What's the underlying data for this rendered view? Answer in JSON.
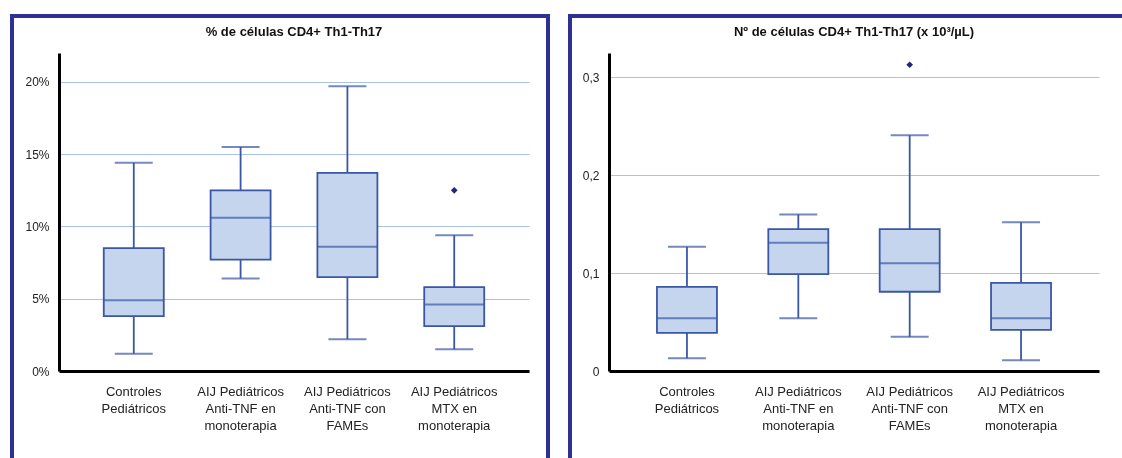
{
  "chart_data": [
    {
      "type": "box",
      "title": "% de células CD4+ Th1-Th17",
      "categories": [
        "Controles\nPediátricos",
        "AIJ Pediátricos\nAnti-TNF en\nmonoterapia",
        "AIJ Pediátricos\nAnti-TNF con\nFAMEs",
        "AIJ Pediátricos\nMTX en\nmonoterapia"
      ],
      "color": "#c5d5ee",
      "boxes": [
        {
          "low": 1.2,
          "q1": 3.8,
          "median": 4.9,
          "q3": 8.5,
          "high": 14.4
        },
        {
          "low": 6.4,
          "q1": 7.7,
          "median": 10.6,
          "q3": 12.5,
          "high": 15.5
        },
        {
          "low": 2.2,
          "q1": 6.5,
          "median": 8.6,
          "q3": 13.7,
          "high": 19.7
        },
        {
          "low": 1.5,
          "q1": 3.1,
          "median": 4.6,
          "q3": 5.8,
          "high": 9.4,
          "outliers": [
            12.5
          ]
        }
      ],
      "ylim": [
        0,
        22
      ],
      "yticks": [
        {
          "value": 0,
          "label": "0%"
        },
        {
          "value": 5,
          "label": "5%"
        },
        {
          "value": 10,
          "label": "10%"
        },
        {
          "value": 15,
          "label": "15%"
        },
        {
          "value": 20,
          "label": "20%"
        }
      ],
      "grid": "y",
      "marker": "diamond"
    },
    {
      "type": "box",
      "title": "Nº de células CD4+ Th1-Th17 (x 10³/µL)",
      "categories": [
        "Controles\nPediátricos",
        "AIJ Pediátricos\nAnti-TNF en\nmonoterapia",
        "AIJ Pediátricos\nAnti-TNF con\nFAMEs",
        "AIJ Pediátricos\nMTX en\nmonoterapia"
      ],
      "color": "#c5d5ee",
      "boxes": [
        {
          "low": 0.013,
          "q1": 0.039,
          "median": 0.054,
          "q3": 0.086,
          "high": 0.127
        },
        {
          "low": 0.054,
          "q1": 0.099,
          "median": 0.131,
          "q3": 0.145,
          "high": 0.16
        },
        {
          "low": 0.035,
          "q1": 0.081,
          "median": 0.11,
          "q3": 0.145,
          "high": 0.241,
          "outliers": [
            0.313
          ]
        },
        {
          "low": 0.011,
          "q1": 0.042,
          "median": 0.054,
          "q3": 0.09,
          "high": 0.152
        }
      ],
      "ylim": [
        0,
        0.325
      ],
      "yticks": [
        0,
        {
          "value": 0.1,
          "label": "0,1"
        },
        {
          "value": 0.2,
          "label": "0,2"
        },
        {
          "value": 0.3,
          "label": "0,3"
        }
      ],
      "grid": "y",
      "marker": "diamond"
    }
  ]
}
